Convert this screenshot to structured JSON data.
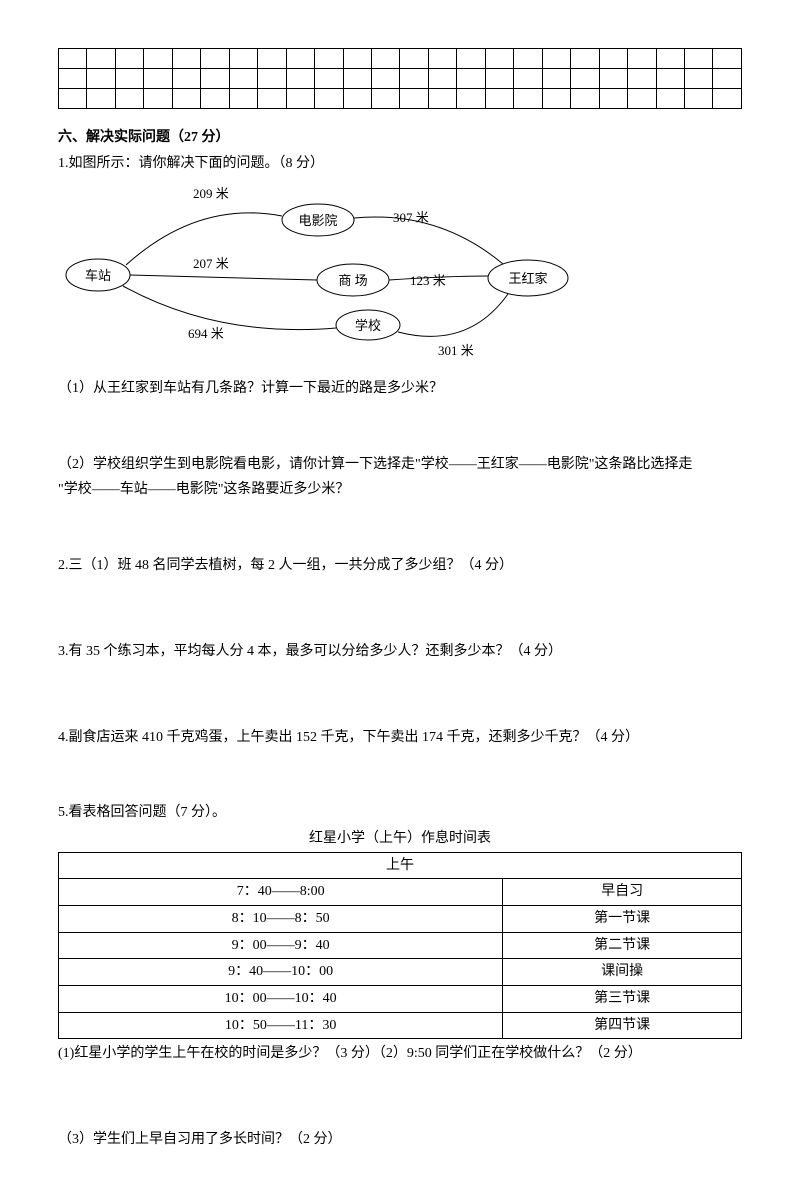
{
  "grid": {
    "rows": 3,
    "cols": 24
  },
  "section6": {
    "title": "六、解决实际问题（27 分）",
    "q1": {
      "stem": "1.如图所示：请你解决下面的问题。（8 分）",
      "labels": {
        "d209": "209 米",
        "d207": "207 米",
        "d307": "307 米",
        "d123": "123 米",
        "d694": "694 米",
        "d301": "301 米",
        "station": "车站",
        "cinema": "电影院",
        "mall": "商  场",
        "school": "学校",
        "home": "王红家"
      },
      "sub1": "（1）从王红家到车站有几条路？计算一下最近的路是多少米？",
      "sub2a": "（2）学校组织学生到电影院看电影，请你计算一下选择走\"学校——王红家——电影院\"这条路比选择走",
      "sub2b": "\"学校——车站——电影院\"这条路要近多少米？"
    },
    "q2": "2.三（1）班 48 名同学去植树，每 2 人一组，一共分成了多少组？（4 分）",
    "q3": "3.有 35 个练习本，平均每人分 4 本，最多可以分给多少人？还剩多少本？（4 分）",
    "q4": "4.副食店运来 410 千克鸡蛋，上午卖出 152 千克，下午卖出 174 千克，还剩多少千克？（4 分）",
    "q5": {
      "stem": "5.看表格回答问题（7 分）。",
      "title": "红星小学（上午）作息时间表",
      "header": "上午",
      "rows": [
        [
          "7：40——8:00",
          "早自习"
        ],
        [
          "8：10——8：50",
          "第一节课"
        ],
        [
          "9：00——9：40",
          "第二节课"
        ],
        [
          "9：40——10：00",
          "课间操"
        ],
        [
          "10：00——10：40",
          "第三节课"
        ],
        [
          "10：50——11：30",
          "第四节课"
        ]
      ],
      "sub1": "(1)红星小学的学生上午在校的时间是多少？（3 分）（2）9:50 同学们正在学校做什么？（2 分）",
      "sub3": "（3）学生们上早自习用了多长时间？（2 分）"
    }
  }
}
